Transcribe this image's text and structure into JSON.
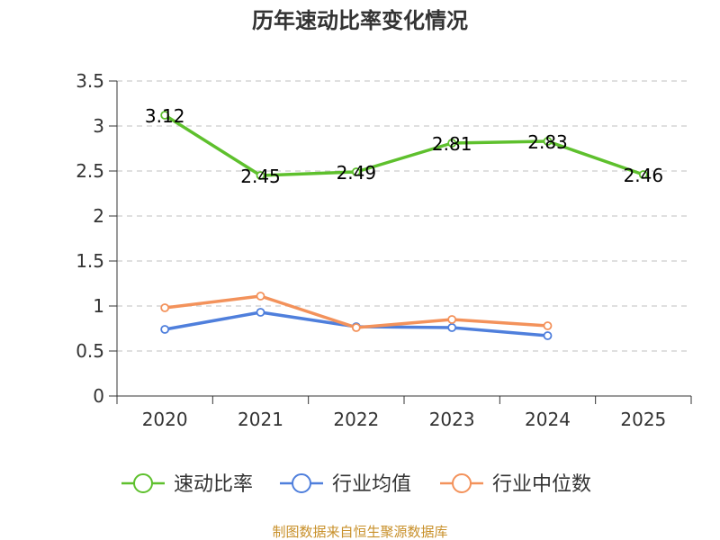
{
  "chart_data": {
    "type": "line",
    "title": "历年速动比率变化情况",
    "categories": [
      "2020",
      "2021",
      "2022",
      "2023",
      "2024",
      "2025"
    ],
    "ylim": [
      0,
      3.5
    ],
    "yticks": [
      "0",
      "0.5",
      "1",
      "1.5",
      "2",
      "2.5",
      "3",
      "3.5"
    ],
    "grid": true,
    "legend_position": "bottom",
    "series": [
      {
        "name": "速动比率",
        "color": "#5ec02d",
        "values": [
          3.12,
          2.45,
          2.49,
          2.81,
          2.83,
          2.46
        ],
        "labels": [
          "3.12",
          "2.45",
          "2.49",
          "2.81",
          "2.83",
          "2.46"
        ],
        "show_labels": true
      },
      {
        "name": "行业均值",
        "color": "#4f7fdc",
        "values": [
          0.74,
          0.93,
          0.77,
          0.76,
          0.67,
          null
        ],
        "show_labels": false
      },
      {
        "name": "行业中位数",
        "color": "#f3925b",
        "values": [
          0.98,
          1.11,
          0.76,
          0.85,
          0.78,
          null
        ],
        "show_labels": false
      }
    ],
    "source": "制图数据来自恒生聚源数据库"
  }
}
